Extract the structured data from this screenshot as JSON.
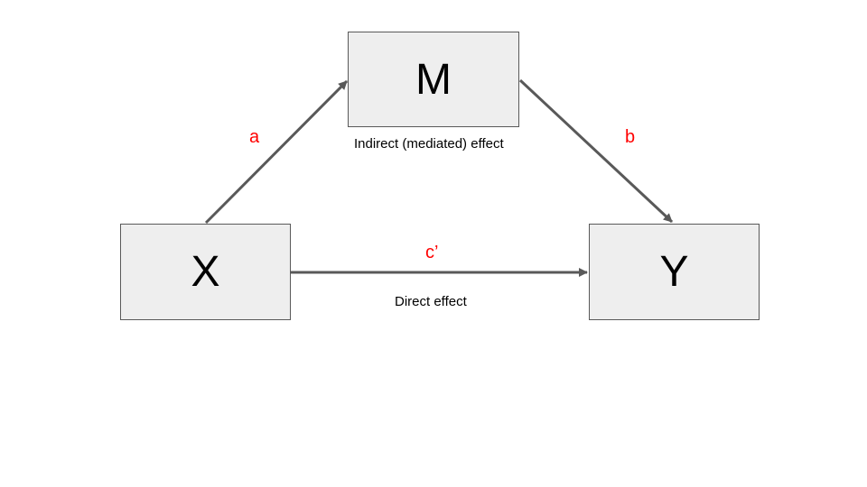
{
  "nodes": {
    "m": "M",
    "x": "X",
    "y": "Y"
  },
  "paths": {
    "a": "a",
    "b": "b",
    "c_prime": "c’"
  },
  "captions": {
    "indirect": "Indirect (mediated) effect",
    "direct": "Direct effect"
  },
  "colors": {
    "box_fill": "#eeeeee",
    "box_border": "#595959",
    "arrow": "#595959",
    "path_label": "#ff0000"
  }
}
